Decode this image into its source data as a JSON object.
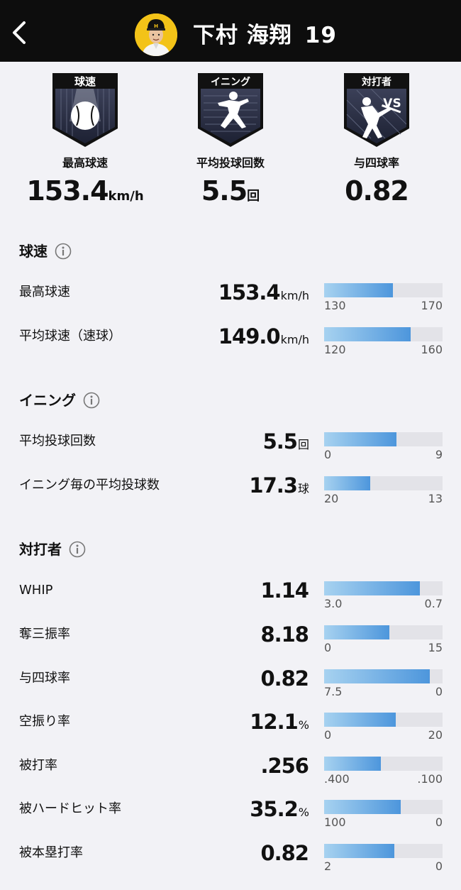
{
  "header": {
    "player_name": "下村 海翔",
    "player_number": "19"
  },
  "summary": [
    {
      "badge_text": "球速",
      "label": "最高球速",
      "value": "153.4",
      "unit": "km/h",
      "icon": "baseball-icon"
    },
    {
      "badge_text": "イニング",
      "label": "平均投球回数",
      "value": "5.5",
      "unit": "回",
      "icon": "pitcher-icon"
    },
    {
      "badge_text": "対打者",
      "badge_extra": "VS",
      "label": "与四球率",
      "value": "0.82",
      "unit": "",
      "icon": "batter-icon"
    }
  ],
  "sections": {
    "velocity": {
      "title": "球速",
      "rows": [
        {
          "label": "最高球速",
          "value": "153.4",
          "unit": "km/h",
          "min": "130",
          "max": "170",
          "fill": 0.58
        },
        {
          "label": "平均球速（速球）",
          "value": "149.0",
          "unit": "km/h",
          "min": "120",
          "max": "160",
          "fill": 0.73
        }
      ]
    },
    "innings": {
      "title": "イニング",
      "rows": [
        {
          "label": "平均投球回数",
          "value": "5.5",
          "unit": "回",
          "min": "0",
          "max": "9",
          "fill": 0.61
        },
        {
          "label": "イニング毎の平均投球数",
          "value": "17.3",
          "unit": "球",
          "min": "20",
          "max": "13",
          "fill": 0.39
        }
      ]
    },
    "batters": {
      "title": "対打者",
      "rows": [
        {
          "label": "WHIP",
          "value": "1.14",
          "unit": "",
          "min": "3.0",
          "max": "0.7",
          "fill": 0.81
        },
        {
          "label": "奪三振率",
          "value": "8.18",
          "unit": "",
          "min": "0",
          "max": "15",
          "fill": 0.55
        },
        {
          "label": "与四球率",
          "value": "0.82",
          "unit": "",
          "min": "7.5",
          "max": "0",
          "fill": 0.89
        },
        {
          "label": "空振り率",
          "value": "12.1",
          "unit": "%",
          "min": "0",
          "max": "20",
          "fill": 0.605
        },
        {
          "label": "被打率",
          "value": ".256",
          "unit": "",
          "min": ".400",
          "max": ".100",
          "fill": 0.48
        },
        {
          "label": "被ハードヒット率",
          "value": "35.2",
          "unit": "%",
          "min": "100",
          "max": "0",
          "fill": 0.648
        },
        {
          "label": "被本塁打率",
          "value": "0.82",
          "unit": "",
          "min": "2",
          "max": "0",
          "fill": 0.59
        }
      ]
    }
  }
}
